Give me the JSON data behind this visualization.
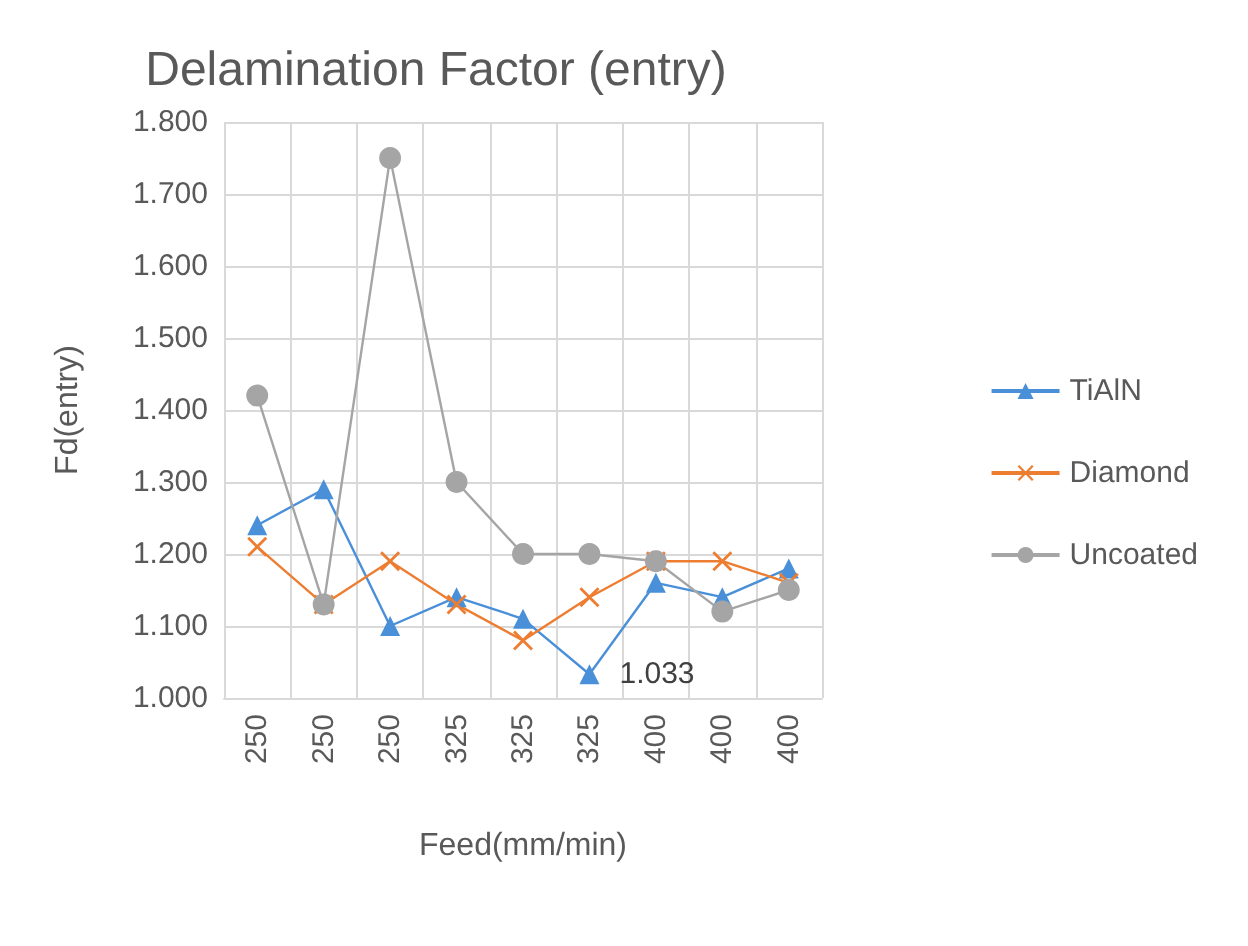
{
  "chart_data": {
    "type": "line",
    "title": "Delamination Factor (entry)",
    "xlabel": "Feed(mm/min)",
    "ylabel": "Fd(entry)",
    "categories": [
      "250",
      "250",
      "250",
      "325",
      "325",
      "325",
      "400",
      "400",
      "400"
    ],
    "series": [
      {
        "name": "TiAlN",
        "color": "#4a90d9",
        "marker": "triangle",
        "values": [
          1.24,
          1.29,
          1.1,
          1.14,
          1.11,
          1.033,
          1.16,
          1.14,
          1.18
        ],
        "value_labels": [
          null,
          null,
          null,
          null,
          null,
          "1.033",
          null,
          null,
          null
        ]
      },
      {
        "name": "Diamond",
        "color": "#ed7d31",
        "marker": "cross",
        "values": [
          1.21,
          1.13,
          1.19,
          1.13,
          1.08,
          1.14,
          1.19,
          1.19,
          1.16
        ]
      },
      {
        "name": "Uncoated",
        "color": "#a5a5a5",
        "marker": "circle",
        "values": [
          1.42,
          1.13,
          1.75,
          1.3,
          1.2,
          1.2,
          1.19,
          1.12,
          1.15
        ]
      }
    ],
    "ylim": [
      1,
      1.8
    ],
    "yticks": [
      {
        "value": 1,
        "label": "1.000"
      },
      {
        "value": 1.1,
        "label": "1.100"
      },
      {
        "value": 1.2,
        "label": "1.200"
      },
      {
        "value": 1.3,
        "label": "1.300"
      },
      {
        "value": 1.4,
        "label": "1.400"
      },
      {
        "value": 1.5,
        "label": "1.500"
      },
      {
        "value": 1.6,
        "label": "1.600"
      },
      {
        "value": 1.7,
        "label": "1.700"
      },
      {
        "value": 1.8,
        "label": "1.800"
      }
    ],
    "grid": true,
    "legend": "right"
  }
}
